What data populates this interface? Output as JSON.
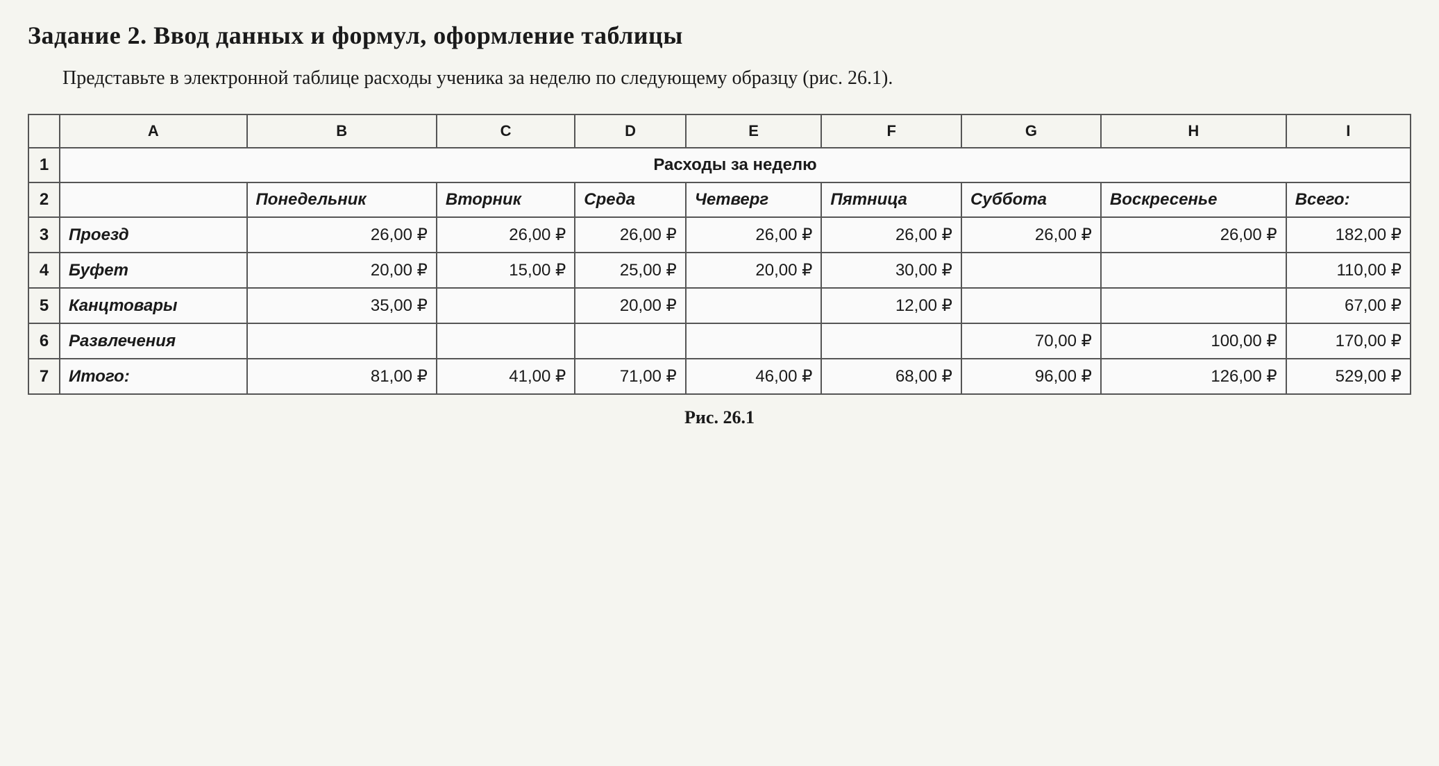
{
  "title": "Задание 2. Ввод данных и формул, оформление таблицы",
  "description": "Представьте в электронной таблице расходы ученика за неделю по следующему образцу (рис. 26.1).",
  "figure_caption": "Рис. 26.1",
  "currency_symbol": "₽",
  "col_letters": [
    "A",
    "B",
    "C",
    "D",
    "E",
    "F",
    "G",
    "H",
    "I"
  ],
  "row_numbers": [
    "1",
    "2",
    "3",
    "4",
    "5",
    "6",
    "7"
  ],
  "sheet_title": "Расходы за неделю",
  "day_headers": [
    "Понедельник",
    "Вторник",
    "Среда",
    "Четверг",
    "Пятница",
    "Суббота",
    "Воскресенье",
    "Всего:"
  ],
  "row_labels": [
    "Проезд",
    "Буфет",
    "Канцтовары",
    "Развлечения",
    "Итого:"
  ],
  "data": {
    "r3": [
      "26,00",
      "26,00",
      "26,00",
      "26,00",
      "26,00",
      "26,00",
      "26,00",
      "182,00"
    ],
    "r4": [
      "20,00",
      "15,00",
      "25,00",
      "20,00",
      "30,00",
      "",
      "",
      "110,00"
    ],
    "r5": [
      "35,00",
      "",
      "20,00",
      "",
      "12,00",
      "",
      "",
      "67,00"
    ],
    "r6": [
      "",
      "",
      "",
      "",
      "",
      "70,00",
      "100,00",
      "170,00"
    ],
    "r7": [
      "81,00",
      "41,00",
      "71,00",
      "46,00",
      "68,00",
      "96,00",
      "126,00",
      "529,00"
    ]
  },
  "colors": {
    "page_bg": "#f5f5f0",
    "text": "#1a1a1a",
    "border": "#555555",
    "cell_bg": "#fafafa"
  },
  "typography": {
    "title_fontsize": 36,
    "body_fontsize": 28,
    "table_fontsize": 24,
    "caption_fontsize": 26
  }
}
